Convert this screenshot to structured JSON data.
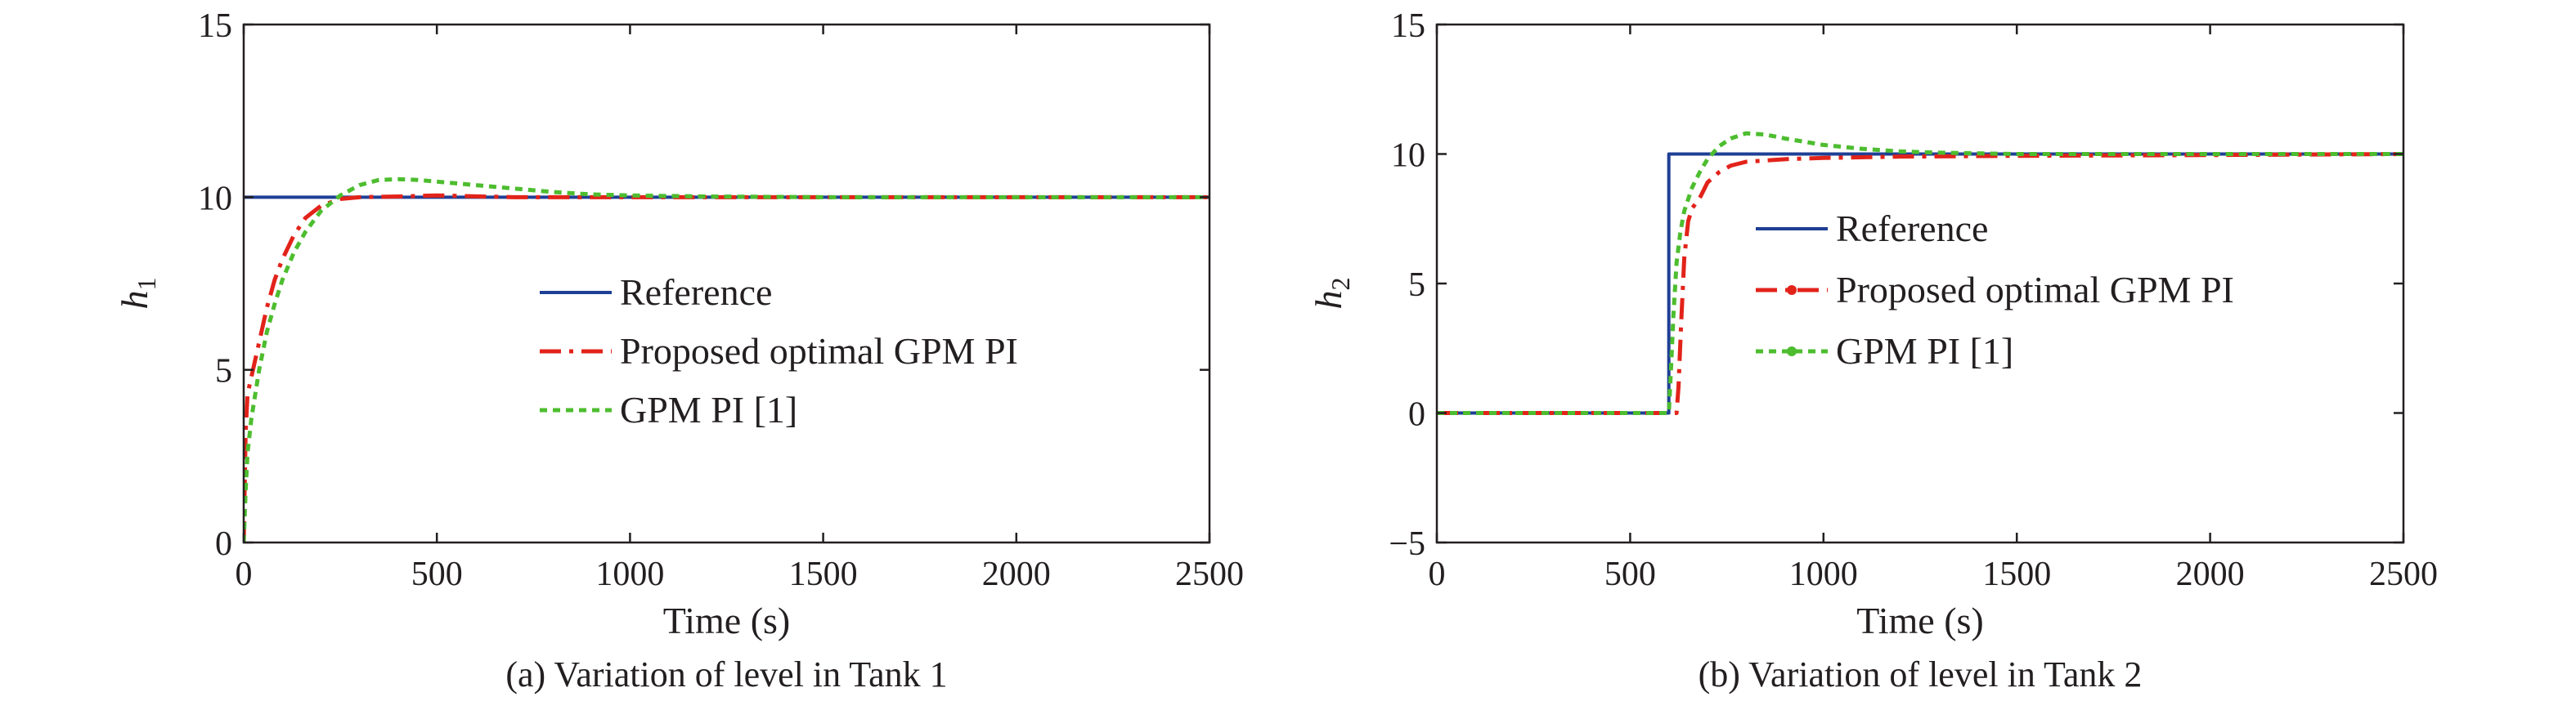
{
  "colors": {
    "reference": "#1f3f95",
    "proposed": "#e2231a",
    "gpm": "#4dbd2f",
    "axis": "#231f20"
  },
  "chart_data": [
    {
      "type": "line",
      "caption": "(a) Variation of level in Tank 1",
      "xlabel": "Time (s)",
      "ylabel": {
        "main": "h",
        "sub": "1"
      },
      "xlim": [
        0,
        2500
      ],
      "ylim": [
        0,
        15
      ],
      "xticks": [
        0,
        500,
        1000,
        1500,
        2000,
        2500
      ],
      "yticks": [
        0,
        5,
        10,
        15
      ],
      "grid": false,
      "legend": {
        "placement": "center"
      },
      "series": [
        {
          "name": "Reference",
          "style": "solid",
          "color_key": "reference",
          "x": [
            0,
            2500
          ],
          "y": [
            10,
            10
          ]
        },
        {
          "name": "Proposed optimal GPM PI",
          "style": "dashdot",
          "color_key": "proposed",
          "x": [
            0,
            5,
            10,
            20,
            40,
            60,
            80,
            100,
            130,
            160,
            200,
            250,
            300,
            400,
            500,
            700,
            1000,
            1500,
            2000,
            2500
          ],
          "y": [
            0,
            3.2,
            4.3,
            4.8,
            5.8,
            6.8,
            7.6,
            8.2,
            8.9,
            9.4,
            9.75,
            9.95,
            10.0,
            10.02,
            10.05,
            10.0,
            10.0,
            10.0,
            10.0,
            10.0
          ]
        },
        {
          "name": "GPM PI [1]",
          "style": "dotted",
          "color_key": "gpm",
          "x": [
            0,
            5,
            10,
            20,
            40,
            60,
            80,
            100,
            130,
            160,
            200,
            250,
            300,
            350,
            400,
            450,
            500,
            600,
            700,
            800,
            900,
            1000,
            1200,
            1500,
            2000,
            2500
          ],
          "y": [
            0,
            1.5,
            2.6,
            3.6,
            5.0,
            6.1,
            6.9,
            7.6,
            8.4,
            9.0,
            9.6,
            10.05,
            10.35,
            10.5,
            10.52,
            10.5,
            10.45,
            10.35,
            10.25,
            10.15,
            10.08,
            10.05,
            10.02,
            10.0,
            10.0,
            10.0
          ]
        }
      ]
    },
    {
      "type": "line",
      "caption": "(b) Variation of level in Tank 2",
      "xlabel": "Time (s)",
      "ylabel": {
        "main": "h",
        "sub": "2"
      },
      "xlim": [
        0,
        2500
      ],
      "ylim": [
        -5,
        15
      ],
      "xticks": [
        0,
        500,
        1000,
        1500,
        2000,
        2500
      ],
      "yticks": [
        -5,
        0,
        5,
        10,
        15
      ],
      "ytick_labels": [
        "−5",
        "0",
        "5",
        "10",
        "15"
      ],
      "grid": false,
      "legend": {
        "placement": "top-center"
      },
      "series": [
        {
          "name": "Reference",
          "style": "solid",
          "color_key": "reference",
          "x": [
            0,
            600,
            600,
            2500
          ],
          "y": [
            0,
            0,
            10,
            10
          ]
        },
        {
          "name": "Proposed optimal GPM PI",
          "style": "dashdot-marker",
          "color_key": "proposed",
          "x": [
            0,
            620,
            625,
            632,
            640,
            650,
            660,
            680,
            700,
            730,
            760,
            800,
            900,
            1000,
            1200,
            1500,
            2000,
            2500
          ],
          "y": [
            0,
            0,
            1.0,
            3.5,
            6.0,
            7.4,
            7.9,
            8.3,
            8.9,
            9.3,
            9.55,
            9.7,
            9.8,
            9.85,
            9.9,
            9.93,
            9.96,
            10.0
          ]
        },
        {
          "name": "GPM PI [1]",
          "style": "dotted-marker",
          "color_key": "gpm",
          "x": [
            0,
            600,
            605,
            612,
            620,
            630,
            640,
            660,
            680,
            700,
            730,
            760,
            800,
            850,
            900,
            1000,
            1100,
            1200,
            1300,
            1500,
            2000,
            2500
          ],
          "y": [
            0,
            0,
            1.5,
            3.8,
            5.8,
            7.0,
            7.8,
            8.7,
            9.3,
            9.8,
            10.3,
            10.6,
            10.8,
            10.75,
            10.6,
            10.35,
            10.2,
            10.1,
            10.05,
            10.0,
            10.0,
            10.0
          ]
        }
      ]
    }
  ]
}
